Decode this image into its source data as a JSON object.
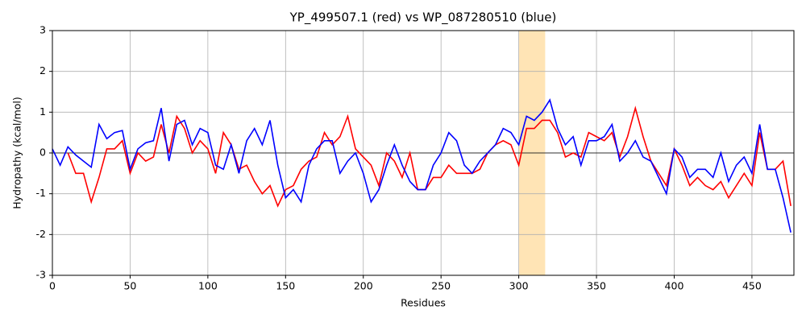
{
  "chart_data": {
    "type": "line",
    "title": "YP_499507.1 (red) vs WP_087280510 (blue)",
    "xlabel": "Residues",
    "ylabel": "Hydropathy (kcal/mol)",
    "x": [
      0,
      5,
      10,
      15,
      20,
      25,
      30,
      35,
      40,
      45,
      50,
      55,
      60,
      65,
      70,
      75,
      80,
      85,
      90,
      95,
      100,
      105,
      110,
      115,
      120,
      125,
      130,
      135,
      140,
      145,
      150,
      155,
      160,
      165,
      170,
      175,
      180,
      185,
      190,
      195,
      200,
      205,
      210,
      215,
      220,
      225,
      230,
      235,
      240,
      245,
      250,
      255,
      260,
      265,
      270,
      275,
      280,
      285,
      290,
      295,
      300,
      305,
      310,
      315,
      320,
      325,
      330,
      335,
      340,
      345,
      350,
      355,
      360,
      365,
      370,
      375,
      380,
      385,
      390,
      395,
      400,
      405,
      410,
      415,
      420,
      425,
      430,
      435,
      440,
      445,
      450,
      455,
      460,
      465,
      470,
      475
    ],
    "series": [
      {
        "name": "YP_499507.1",
        "color": "#ff0000",
        "values": [
          null,
          null,
          0.0,
          -0.5,
          -0.5,
          -1.2,
          -0.6,
          0.1,
          0.1,
          0.3,
          -0.5,
          0.0,
          -0.2,
          -0.1,
          0.7,
          0.0,
          0.9,
          0.6,
          0.0,
          0.3,
          0.1,
          -0.5,
          0.5,
          0.2,
          -0.4,
          -0.3,
          -0.7,
          -1.0,
          -0.8,
          -1.3,
          -0.9,
          -0.8,
          -0.4,
          -0.2,
          -0.1,
          0.5,
          0.2,
          0.4,
          0.9,
          0.1,
          -0.1,
          -0.3,
          -0.8,
          0.0,
          -0.2,
          -0.6,
          0.0,
          -0.9,
          -0.9,
          -0.6,
          -0.6,
          -0.3,
          -0.5,
          -0.5,
          -0.5,
          -0.4,
          0.0,
          0.2,
          0.3,
          0.2,
          -0.3,
          0.6,
          0.6,
          0.8,
          0.8,
          0.5,
          -0.1,
          0.0,
          -0.1,
          0.5,
          0.4,
          0.3,
          0.5,
          -0.1,
          0.4,
          1.1,
          0.4,
          -0.2,
          -0.5,
          -0.8,
          0.1,
          -0.3,
          -0.8,
          -0.6,
          -0.8,
          -0.9,
          -0.7,
          -1.1,
          -0.8,
          -0.5,
          -0.8,
          0.5,
          -0.4,
          -0.4,
          -0.2,
          -1.3
        ]
      },
      {
        "name": "WP_087280510",
        "color": "#0000ff",
        "values": [
          0.1,
          -0.3,
          0.15,
          -0.05,
          -0.2,
          -0.35,
          0.7,
          0.35,
          0.5,
          0.55,
          -0.4,
          0.1,
          0.25,
          0.3,
          1.1,
          -0.2,
          0.7,
          0.8,
          0.2,
          0.6,
          0.5,
          -0.3,
          -0.4,
          0.2,
          -0.5,
          0.3,
          0.6,
          0.2,
          0.8,
          -0.3,
          -1.1,
          -0.9,
          -1.2,
          -0.3,
          0.1,
          0.3,
          0.3,
          -0.5,
          -0.2,
          0.0,
          -0.5,
          -1.2,
          -0.9,
          -0.3,
          0.2,
          -0.3,
          -0.7,
          -0.9,
          -0.9,
          -0.3,
          0.0,
          0.5,
          0.3,
          -0.3,
          -0.5,
          -0.2,
          0.0,
          0.2,
          0.6,
          0.5,
          0.2,
          0.9,
          0.8,
          1.0,
          1.3,
          0.6,
          0.2,
          0.4,
          -0.3,
          0.3,
          0.3,
          0.4,
          0.7,
          -0.2,
          0.0,
          0.3,
          -0.1,
          -0.2,
          -0.6,
          -1.0,
          0.1,
          -0.1,
          -0.6,
          -0.4,
          -0.4,
          -0.6,
          0.0,
          -0.7,
          -0.3,
          -0.1,
          -0.5,
          0.7,
          -0.4,
          -0.4,
          -1.1,
          -1.95
        ]
      }
    ],
    "highlight": {
      "range": [
        300,
        317
      ],
      "color": "#ffe4b5"
    },
    "hline": 0,
    "xlim": [
      0,
      477
    ],
    "ylim": [
      -3,
      3
    ],
    "xticks": [
      0,
      50,
      100,
      150,
      200,
      250,
      300,
      350,
      400,
      450
    ],
    "yticks": [
      -3,
      -2,
      -1,
      0,
      1,
      2,
      3
    ],
    "grid": true
  }
}
